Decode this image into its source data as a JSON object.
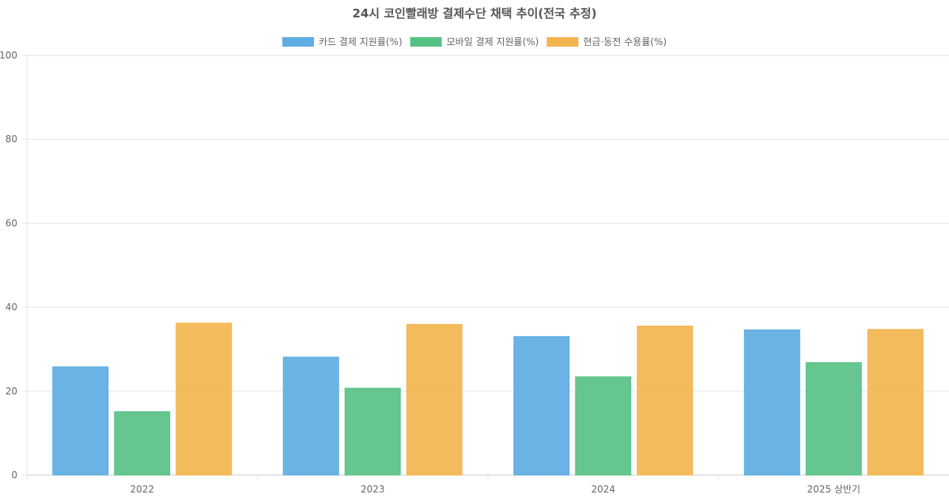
{
  "chart_data": {
    "type": "bar",
    "title": "24시 코인빨래방 결제수단 채택 추이(전국 추정)",
    "categories": [
      "2022",
      "2023",
      "2024",
      "2025 상반기"
    ],
    "series": [
      {
        "name": "카드 결제 지원률(%)",
        "values": [
          25.8,
          28.1,
          33.0,
          34.6
        ],
        "color": "#5DADE2"
      },
      {
        "name": "모바일 결제 지원률(%)",
        "values": [
          15.1,
          20.7,
          23.4,
          26.8
        ],
        "color": "#58C185"
      },
      {
        "name": "현금·동전 수용률(%)",
        "values": [
          36.2,
          35.9,
          35.5,
          34.7
        ],
        "color": "#F3B54F"
      }
    ],
    "ylim": [
      0,
      100
    ],
    "yticks": [
      0,
      20,
      40,
      60,
      80,
      100
    ],
    "grid": true,
    "legend": "top-center",
    "xlabel": "",
    "ylabel": ""
  }
}
